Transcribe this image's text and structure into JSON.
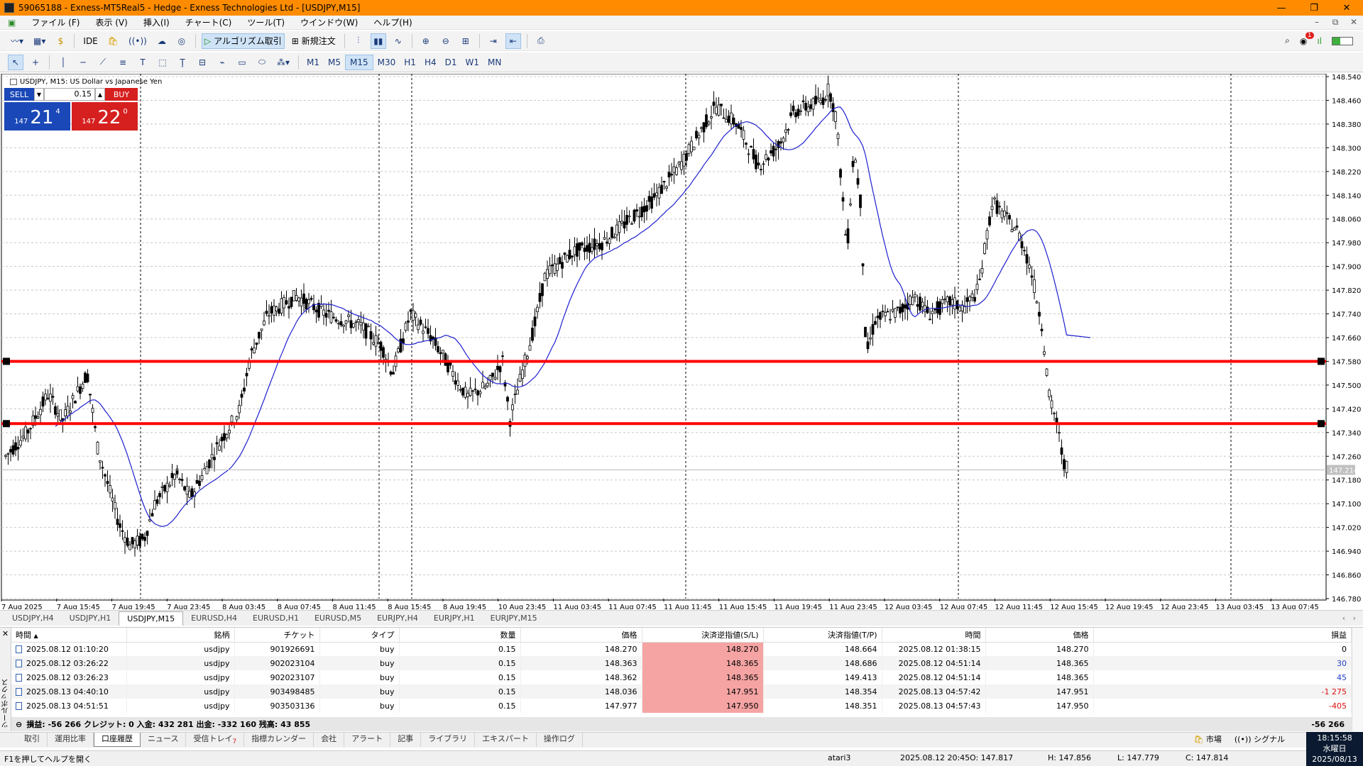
{
  "window": {
    "title": "59065188 - Exness-MT5Real5 - Hedge - Exness Technologies Ltd - [USDJPY,M15]",
    "minimize": "—",
    "maximize": "❐",
    "close": "✕"
  },
  "menu": [
    "ファイル (F)",
    "表示 (V)",
    "挿入(I)",
    "チャート(C)",
    "ツール(T)",
    "ウインドウ(W)",
    "ヘルプ(H)"
  ],
  "toolbar": {
    "ide": "IDE",
    "algo": "アルゴリズム取引",
    "neworder": "新規注文",
    "notif_count": "1"
  },
  "timeframes": [
    "M1",
    "M5",
    "M15",
    "M30",
    "H1",
    "H4",
    "D1",
    "W1",
    "MN"
  ],
  "active_timeframe": "M15",
  "chart": {
    "header": "USDJPY, M15:  US Dollar vs Japanese Yen",
    "oneclick": {
      "sell": "SELL",
      "buy": "BUY",
      "volume": "0.15",
      "bid_prefix": "147",
      "bid_big": "21",
      "bid_sup": "4",
      "ask_prefix": "147",
      "ask_big": "22",
      "ask_sup": "0"
    },
    "price_levels": [
      "148.540",
      "148.460",
      "148.380",
      "148.300",
      "148.220",
      "148.140",
      "148.060",
      "147.980",
      "147.900",
      "147.820",
      "147.740",
      "147.660",
      "147.580",
      "147.500",
      "147.420",
      "147.340",
      "147.260",
      "147.180",
      "147.100",
      "147.020",
      "146.940",
      "146.860",
      "146.780"
    ],
    "current_price": "147.214",
    "time_labels": [
      "7 Aug 2025",
      "7 Aug 15:45",
      "7 Aug 19:45",
      "7 Aug 23:45",
      "8 Aug 03:45",
      "8 Aug 07:45",
      "8 Aug 11:45",
      "8 Aug 15:45",
      "8 Aug 19:45",
      "10 Aug 23:45",
      "11 Aug 03:45",
      "11 Aug 07:45",
      "11 Aug 11:45",
      "11 Aug 15:45",
      "11 Aug 19:45",
      "11 Aug 23:45",
      "12 Aug 03:45",
      "12 Aug 07:45",
      "12 Aug 11:45",
      "12 Aug 15:45",
      "12 Aug 19:45",
      "12 Aug 23:45",
      "13 Aug 03:45",
      "13 Aug 07:45"
    ],
    "hlines": [
      "147.580",
      "147.370"
    ],
    "colors": {
      "bg": "#ffffff",
      "candles": "#000000",
      "ma": "#1f1fd0",
      "hline": "#ff0000",
      "grid": "#c8c8c8"
    }
  },
  "chart_tabs": [
    "USDJPY,H4",
    "USDJPY,H1",
    "USDJPY,M15",
    "EURUSD,H4",
    "EURUSD,H1",
    "EURUSD,M5",
    "EURJPY,H4",
    "EURJPY,H1",
    "EURJPY,M15"
  ],
  "active_chart_tab": "USDJPY,M15",
  "history": {
    "side_title": "ツールボックス",
    "columns": [
      "時間",
      "銘柄",
      "チケット",
      "タイプ",
      "数量",
      "価格",
      "決済逆指値(S/L)",
      "決済指値(T/P)",
      "時間",
      "価格",
      "損益"
    ],
    "rows": [
      [
        "2025.08.12 01:10:20",
        "usdjpy",
        "901926691",
        "buy",
        "0.15",
        "148.270",
        "148.270",
        "148.664",
        "2025.08.12 01:38:15",
        "148.270",
        "0"
      ],
      [
        "2025.08.12 03:26:22",
        "usdjpy",
        "902023104",
        "buy",
        "0.15",
        "148.363",
        "148.365",
        "148.686",
        "2025.08.12 04:51:14",
        "148.365",
        "30"
      ],
      [
        "2025.08.12 03:26:23",
        "usdjpy",
        "902023107",
        "buy",
        "0.15",
        "148.362",
        "148.365",
        "149.413",
        "2025.08.12 04:51:14",
        "148.365",
        "45"
      ],
      [
        "2025.08.13 04:40:10",
        "usdjpy",
        "903498485",
        "buy",
        "0.15",
        "148.036",
        "147.951",
        "148.354",
        "2025.08.13 04:57:42",
        "147.951",
        "-1 275"
      ],
      [
        "2025.08.13 04:51:51",
        "usdjpy",
        "903503136",
        "buy",
        "0.15",
        "147.977",
        "147.950",
        "148.351",
        "2025.08.13 04:57:43",
        "147.950",
        "-405"
      ]
    ],
    "summary": "損益: -56 266  クレジット: 0  入金: 432 281  出金: -332 160  残高: 43 855",
    "total": "-56 266"
  },
  "bottom_tabs": [
    "取引",
    "運用比率",
    "口座履歴",
    "ニュース",
    "受信トレイ",
    "指標カレンダー",
    "会社",
    "アラート",
    "記事",
    "ライブラリ",
    "エキスパート",
    "操作ログ"
  ],
  "active_bottom_tab": "口座履歴",
  "inbox_badge": "7",
  "market": "市場",
  "signals": "シグナル",
  "status": {
    "help": "F1を押してヘルプを開く",
    "profile": "atari3",
    "time": "2025.08.12 20:45",
    "open": "O: 147.817",
    "high": "H: 147.856",
    "low": "L: 147.779",
    "close": "C: 147.814"
  },
  "clock": {
    "time": "18:15:58",
    "day": "水曜日",
    "date": "2025/08/13"
  }
}
